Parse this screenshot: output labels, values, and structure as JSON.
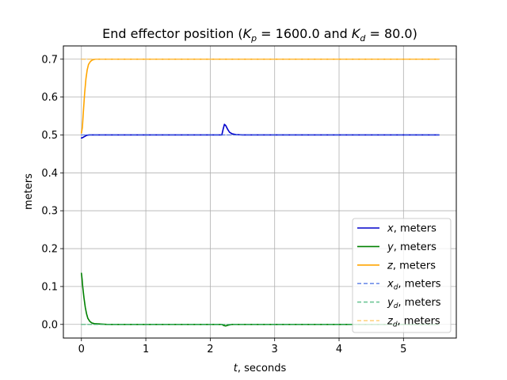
{
  "chart_data": {
    "type": "line",
    "title": {
      "prefix": "End effector position (",
      "kp_var": "K",
      "kp_sub": "p",
      "kp_eq": " = 1600.0",
      "mid": " and ",
      "kd_var": "K",
      "kd_sub": "d",
      "kd_eq": " = 80.0",
      "suffix": ")"
    },
    "xlabel": {
      "var": "t",
      "rest": ", seconds"
    },
    "ylabel": "meters",
    "xlim": [
      -0.28,
      5.82
    ],
    "ylim": [
      -0.036,
      0.735
    ],
    "xticks": [
      0,
      1,
      2,
      3,
      4,
      5
    ],
    "xtick_labels": [
      "0",
      "1",
      "2",
      "3",
      "4",
      "5"
    ],
    "yticks": [
      0.0,
      0.1,
      0.2,
      0.3,
      0.4,
      0.5,
      0.6,
      0.7
    ],
    "ytick_labels": [
      "0.0",
      "0.1",
      "0.2",
      "0.3",
      "0.4",
      "0.5",
      "0.6",
      "0.7"
    ],
    "grid": true,
    "legend_position": "lower-right",
    "series": [
      {
        "label_var": "x",
        "label_sub": "",
        "label_rest": ", meters",
        "color": "#0000cc",
        "dashed": false,
        "points": [
          [
            0,
            0.492
          ],
          [
            0.02,
            0.493
          ],
          [
            0.04,
            0.495
          ],
          [
            0.06,
            0.497
          ],
          [
            0.08,
            0.499
          ],
          [
            0.12,
            0.5
          ],
          [
            2.18,
            0.5
          ],
          [
            2.2,
            0.515
          ],
          [
            2.22,
            0.528
          ],
          [
            2.24,
            0.525
          ],
          [
            2.27,
            0.515
          ],
          [
            2.3,
            0.507
          ],
          [
            2.34,
            0.503
          ],
          [
            2.4,
            0.501
          ],
          [
            2.5,
            0.5
          ],
          [
            5.55,
            0.5
          ]
        ]
      },
      {
        "label_var": "y",
        "label_sub": "",
        "label_rest": ", meters",
        "color": "#008000",
        "dashed": false,
        "points": [
          [
            0,
            0.135
          ],
          [
            0.01,
            0.12
          ],
          [
            0.02,
            0.1
          ],
          [
            0.04,
            0.07
          ],
          [
            0.06,
            0.045
          ],
          [
            0.08,
            0.028
          ],
          [
            0.1,
            0.016
          ],
          [
            0.13,
            0.008
          ],
          [
            0.16,
            0.004
          ],
          [
            0.2,
            0.002
          ],
          [
            0.3,
            0.001
          ],
          [
            0.4,
            0.0
          ],
          [
            2.18,
            0.0
          ],
          [
            2.21,
            -0.003
          ],
          [
            2.24,
            -0.004
          ],
          [
            2.28,
            -0.002
          ],
          [
            2.34,
            0.0
          ],
          [
            5.55,
            0.0
          ]
        ]
      },
      {
        "label_var": "z",
        "label_sub": "",
        "label_rest": ", meters",
        "color": "#ffa500",
        "dashed": false,
        "points": [
          [
            0,
            0.505
          ],
          [
            0.015,
            0.52
          ],
          [
            0.03,
            0.56
          ],
          [
            0.05,
            0.61
          ],
          [
            0.07,
            0.648
          ],
          [
            0.09,
            0.672
          ],
          [
            0.11,
            0.686
          ],
          [
            0.14,
            0.694
          ],
          [
            0.17,
            0.698
          ],
          [
            0.22,
            0.7
          ],
          [
            5.55,
            0.7
          ]
        ]
      },
      {
        "label_var": "x",
        "label_sub": "d",
        "label_rest": ", meters",
        "color": "#4169e1",
        "dashed": true,
        "points": [
          [
            0,
            0.5
          ],
          [
            5.55,
            0.5
          ]
        ]
      },
      {
        "label_var": "y",
        "label_sub": "d",
        "label_rest": ", meters",
        "color": "#3cb371",
        "dashed": true,
        "points": [
          [
            0,
            0.0
          ],
          [
            5.55,
            0.0
          ]
        ]
      },
      {
        "label_var": "z",
        "label_sub": "d",
        "label_rest": ", meters",
        "color": "#ffc04d",
        "dashed": true,
        "points": [
          [
            0,
            0.7
          ],
          [
            5.55,
            0.7
          ]
        ]
      }
    ]
  }
}
